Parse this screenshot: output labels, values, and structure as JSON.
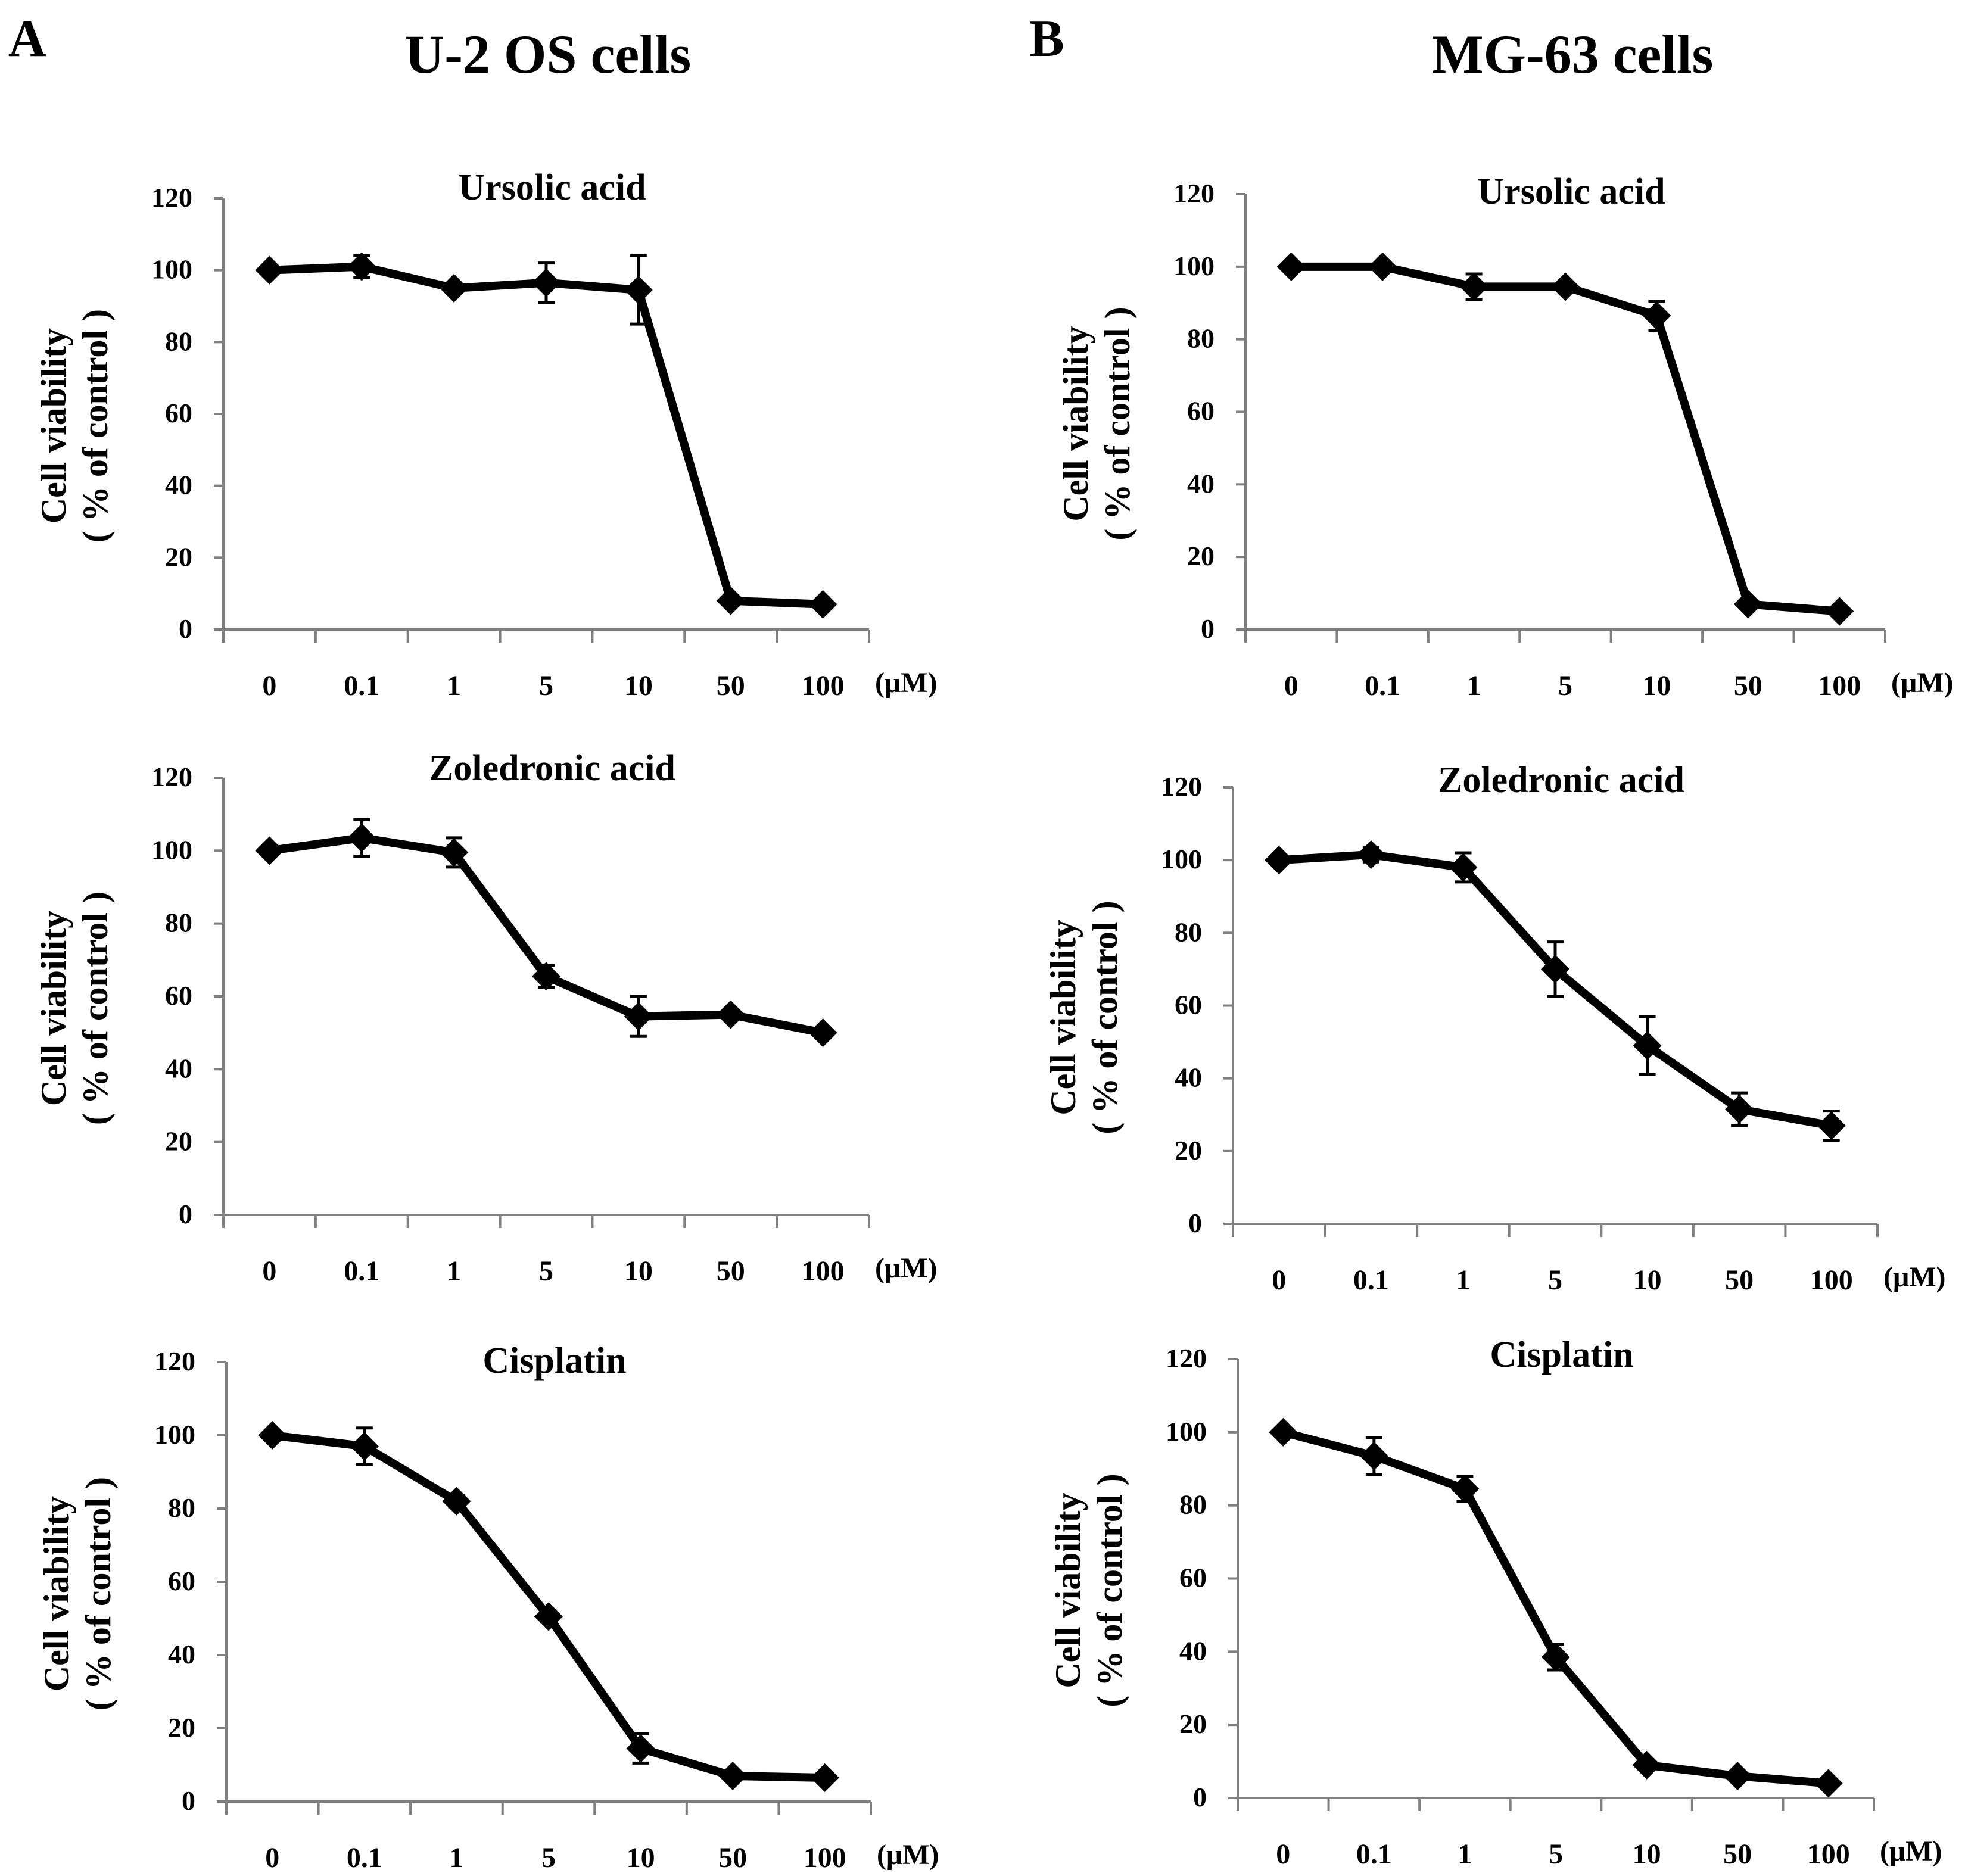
{
  "figure": {
    "panels": [
      {
        "label": "A",
        "title": "U-2 OS cells"
      },
      {
        "label": "B",
        "title": "MG-63 cells"
      }
    ]
  },
  "style": {
    "axis_color": "#808080",
    "line_color": "#000000",
    "marker_color": "#000000",
    "background": "#ffffff"
  },
  "chart_data": [
    {
      "type": "line",
      "panel": "A",
      "cell_line": "U-2 OS cells",
      "title": "Ursolic acid",
      "categories": [
        "0",
        "0.1",
        "1",
        "5",
        "10",
        "50",
        "100"
      ],
      "x_unit": "(μM)",
      "ylabel": [
        "Cell viability",
        "( % of control )"
      ],
      "ylim": [
        0,
        120
      ],
      "yticks": [
        0,
        20,
        40,
        60,
        80,
        100,
        120
      ],
      "grid": false,
      "legend": "none",
      "marker": "diamond",
      "series": [
        {
          "name": "Ursolic acid",
          "values": [
            100,
            101,
            95,
            96.5,
            94.5,
            8,
            7
          ],
          "errors": [
            0,
            3,
            0,
            5.5,
            9.5,
            0,
            0
          ]
        }
      ]
    },
    {
      "type": "line",
      "panel": "A",
      "cell_line": "U-2 OS cells",
      "title": "Zoledronic acid",
      "categories": [
        "0",
        "0.1",
        "1",
        "5",
        "10",
        "50",
        "100"
      ],
      "x_unit": "(μM)",
      "ylabel": [
        "Cell viability",
        "( % of control )"
      ],
      "ylim": [
        0,
        120
      ],
      "yticks": [
        0,
        20,
        40,
        60,
        80,
        100,
        120
      ],
      "grid": false,
      "legend": "none",
      "marker": "diamond",
      "series": [
        {
          "name": "Zoledronic acid",
          "values": [
            100,
            103.5,
            99.5,
            65.5,
            54.5,
            55,
            50
          ],
          "errors": [
            0,
            5,
            4,
            3,
            5.5,
            0,
            0
          ]
        }
      ]
    },
    {
      "type": "line",
      "panel": "A",
      "cell_line": "U-2 OS cells",
      "title": "Cisplatin",
      "categories": [
        "0",
        "0.1",
        "1",
        "5",
        "10",
        "50",
        "100"
      ],
      "x_unit": "(μM)",
      "ylabel": [
        "Cell viability",
        "( % of control )"
      ],
      "ylim": [
        0,
        120
      ],
      "yticks": [
        0,
        20,
        40,
        60,
        80,
        100,
        120
      ],
      "grid": false,
      "legend": "none",
      "marker": "diamond",
      "series": [
        {
          "name": "Cisplatin",
          "values": [
            100,
            97,
            82,
            50.5,
            14.5,
            7,
            6.5
          ],
          "errors": [
            0,
            5,
            1.5,
            1.5,
            4,
            0,
            0
          ]
        }
      ]
    },
    {
      "type": "line",
      "panel": "B",
      "cell_line": "MG-63 cells",
      "title": "Ursolic acid",
      "categories": [
        "0",
        "0.1",
        "1",
        "5",
        "10",
        "50",
        "100"
      ],
      "x_unit": "(μM)",
      "ylabel": [
        "Cell viability",
        "( % of control )"
      ],
      "ylim": [
        0,
        120
      ],
      "yticks": [
        0,
        20,
        40,
        60,
        80,
        100,
        120
      ],
      "grid": false,
      "legend": "none",
      "marker": "diamond",
      "series": [
        {
          "name": "Ursolic acid",
          "values": [
            100,
            100,
            94.5,
            94.5,
            86.5,
            7,
            5
          ],
          "errors": [
            0,
            0,
            3.5,
            0,
            4,
            0,
            0
          ]
        }
      ]
    },
    {
      "type": "line",
      "panel": "B",
      "cell_line": "MG-63 cells",
      "title": "Zoledronic acid",
      "categories": [
        "0",
        "0.1",
        "1",
        "5",
        "10",
        "50",
        "100"
      ],
      "x_unit": "(μM)",
      "ylabel": [
        "Cell viability",
        "( % of control )"
      ],
      "ylim": [
        0,
        120
      ],
      "yticks": [
        0,
        20,
        40,
        60,
        80,
        100,
        120
      ],
      "grid": false,
      "legend": "none",
      "marker": "diamond",
      "series": [
        {
          "name": "Zoledronic acid",
          "values": [
            100,
            101.5,
            98,
            70,
            49,
            31.5,
            27
          ],
          "errors": [
            0,
            2,
            4,
            7.5,
            8,
            4.5,
            4
          ]
        }
      ]
    },
    {
      "type": "line",
      "panel": "B",
      "cell_line": "MG-63 cells",
      "title": "Cisplatin",
      "categories": [
        "0",
        "0.1",
        "1",
        "5",
        "10",
        "50",
        "100"
      ],
      "x_unit": "(μM)",
      "ylabel": [
        "Cell viability",
        "( % of control )"
      ],
      "ylim": [
        0,
        120
      ],
      "yticks": [
        0,
        20,
        40,
        60,
        80,
        100,
        120
      ],
      "grid": false,
      "legend": "none",
      "marker": "diamond",
      "series": [
        {
          "name": "Cisplatin",
          "values": [
            100,
            93.5,
            84.5,
            38.5,
            9,
            6,
            4
          ],
          "errors": [
            0,
            5,
            3.5,
            3.5,
            0,
            0,
            0
          ]
        }
      ]
    }
  ]
}
